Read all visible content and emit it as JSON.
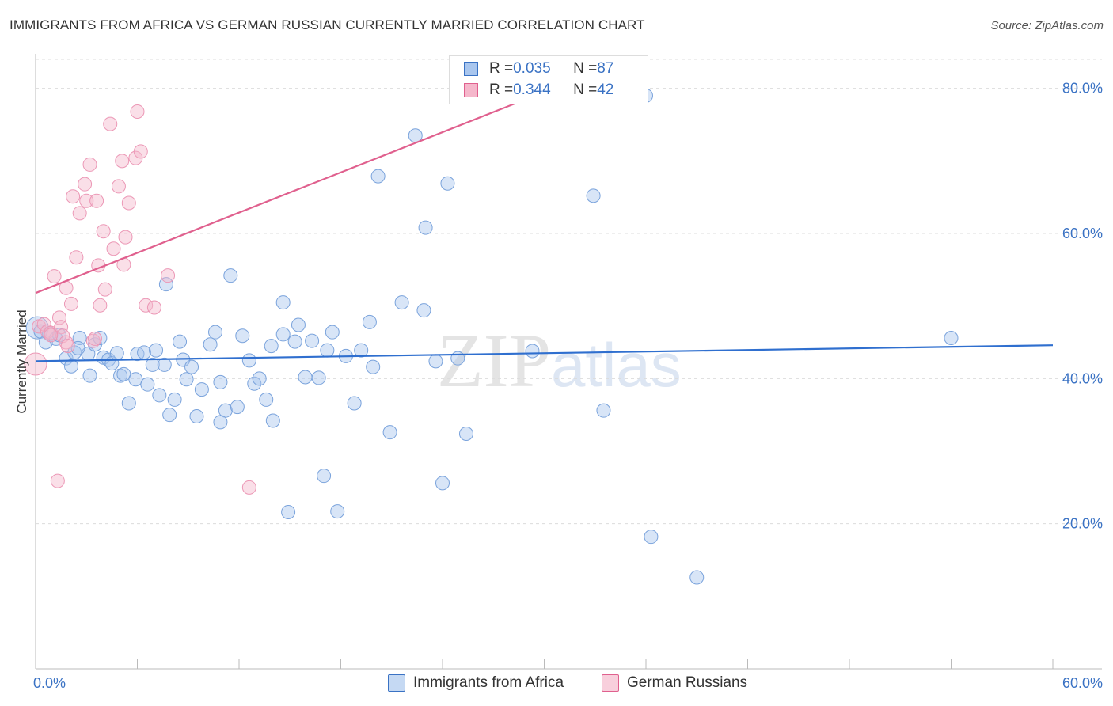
{
  "title": "IMMIGRANTS FROM AFRICA VS GERMAN RUSSIAN CURRENTLY MARRIED CORRELATION CHART",
  "source": "Source: ZipAtlas.com",
  "watermark": {
    "zip": "ZIP",
    "atlas": "atlas"
  },
  "colors": {
    "blue": "#3a72c4",
    "blue_fill": "#a9c6ee",
    "pink": "#e0608e",
    "pink_fill": "#f5b7cb"
  },
  "legend": {
    "rows": [
      {
        "r_label": "R = ",
        "r_value": "0.035",
        "n_label": "N = ",
        "n_value": "87"
      },
      {
        "r_label": "R = ",
        "r_value": "0.344",
        "n_label": "N = ",
        "n_value": "42"
      }
    ]
  },
  "bottom_legend": {
    "series1": "Immigrants from Africa",
    "series2": "German Russians"
  },
  "chart_data": {
    "type": "scatter",
    "title": "IMMIGRANTS FROM AFRICA VS GERMAN RUSSIAN CURRENTLY MARRIED CORRELATION CHART",
    "xlabel": "",
    "ylabel": "Currently Married",
    "xlim": [
      0,
      60
    ],
    "ylim": [
      0,
      84
    ],
    "x_tick_labels": [
      "0.0%",
      "60.0%"
    ],
    "y_ticks": [
      20,
      40,
      60,
      80
    ],
    "y_tick_labels": [
      "20.0%",
      "40.0%",
      "60.0%",
      "80.0%"
    ],
    "series": [
      {
        "name": "Immigrants from Africa",
        "r": 0.035,
        "n": 87,
        "trend": [
          [
            0,
            42.4
          ],
          [
            60,
            44.6
          ]
        ],
        "points": [
          [
            0.1,
            47.0
          ],
          [
            0.3,
            46.5
          ],
          [
            0.6,
            45.0
          ],
          [
            0.8,
            46.2
          ],
          [
            1.2,
            45.5
          ],
          [
            1.8,
            42.8
          ],
          [
            2.1,
            41.7
          ],
          [
            2.3,
            43.6
          ],
          [
            2.6,
            45.6
          ],
          [
            3.1,
            43.4
          ],
          [
            3.2,
            40.4
          ],
          [
            3.5,
            44.7
          ],
          [
            3.8,
            45.6
          ],
          [
            4.0,
            42.9
          ],
          [
            4.3,
            42.6
          ],
          [
            4.5,
            42.1
          ],
          [
            4.8,
            43.5
          ],
          [
            5.0,
            40.4
          ],
          [
            5.2,
            40.6
          ],
          [
            5.5,
            36.6
          ],
          [
            5.9,
            39.9
          ],
          [
            6.0,
            43.4
          ],
          [
            6.4,
            43.6
          ],
          [
            6.6,
            39.2
          ],
          [
            6.9,
            41.9
          ],
          [
            7.1,
            43.9
          ],
          [
            7.3,
            37.7
          ],
          [
            7.6,
            41.9
          ],
          [
            7.9,
            35.0
          ],
          [
            8.2,
            37.1
          ],
          [
            8.5,
            45.1
          ],
          [
            8.7,
            42.6
          ],
          [
            8.9,
            39.9
          ],
          [
            9.2,
            41.6
          ],
          [
            9.5,
            34.8
          ],
          [
            9.8,
            38.5
          ],
          [
            10.3,
            44.7
          ],
          [
            10.6,
            46.4
          ],
          [
            10.9,
            39.5
          ],
          [
            11.2,
            35.6
          ],
          [
            11.5,
            54.2
          ],
          [
            11.9,
            36.1
          ],
          [
            12.2,
            45.9
          ],
          [
            12.6,
            42.5
          ],
          [
            12.9,
            39.3
          ],
          [
            13.2,
            40.0
          ],
          [
            13.6,
            37.1
          ],
          [
            13.9,
            44.5
          ],
          [
            14.0,
            34.2
          ],
          [
            14.6,
            46.1
          ],
          [
            14.6,
            50.5
          ],
          [
            15.3,
            45.1
          ],
          [
            15.5,
            47.4
          ],
          [
            15.9,
            40.2
          ],
          [
            16.3,
            45.2
          ],
          [
            16.7,
            40.1
          ],
          [
            17.0,
            26.6
          ],
          [
            17.2,
            43.9
          ],
          [
            17.5,
            46.4
          ],
          [
            17.8,
            21.7
          ],
          [
            18.3,
            43.1
          ],
          [
            18.8,
            36.6
          ],
          [
            19.2,
            43.9
          ],
          [
            19.7,
            47.8
          ],
          [
            19.9,
            41.6
          ],
          [
            20.2,
            67.9
          ],
          [
            20.9,
            32.6
          ],
          [
            21.6,
            50.5
          ],
          [
            22.4,
            73.5
          ],
          [
            22.9,
            49.4
          ],
          [
            23.0,
            60.8
          ],
          [
            23.6,
            42.4
          ],
          [
            24.0,
            25.6
          ],
          [
            24.3,
            66.9
          ],
          [
            24.9,
            42.8
          ],
          [
            25.4,
            32.4
          ],
          [
            29.3,
            43.8
          ],
          [
            32.9,
            65.2
          ],
          [
            33.5,
            35.6
          ],
          [
            36.0,
            79.0
          ],
          [
            36.3,
            18.2
          ],
          [
            39.0,
            12.6
          ],
          [
            54.0,
            45.6
          ],
          [
            14.9,
            21.6
          ],
          [
            7.7,
            53.0
          ],
          [
            10.9,
            34.0
          ],
          [
            1.4,
            46.0
          ],
          [
            2.5,
            44.2
          ]
        ]
      },
      {
        "name": "German Russians",
        "r": 0.344,
        "n": 42,
        "trend": [
          [
            0,
            51.8
          ],
          [
            30,
            79.5
          ]
        ],
        "points": [
          [
            0.0,
            42.0
          ],
          [
            0.2,
            47.2
          ],
          [
            0.5,
            47.5
          ],
          [
            0.7,
            46.5
          ],
          [
            0.9,
            46.3
          ],
          [
            1.1,
            54.1
          ],
          [
            1.3,
            25.9
          ],
          [
            1.4,
            48.4
          ],
          [
            1.5,
            47.1
          ],
          [
            1.6,
            45.9
          ],
          [
            1.8,
            45.0
          ],
          [
            1.8,
            52.5
          ],
          [
            2.1,
            50.3
          ],
          [
            2.2,
            65.1
          ],
          [
            2.4,
            56.7
          ],
          [
            2.6,
            62.8
          ],
          [
            2.9,
            66.8
          ],
          [
            3.0,
            64.5
          ],
          [
            3.2,
            69.5
          ],
          [
            3.4,
            45.2
          ],
          [
            3.6,
            64.5
          ],
          [
            3.7,
            55.6
          ],
          [
            3.8,
            50.1
          ],
          [
            4.0,
            60.3
          ],
          [
            4.1,
            52.3
          ],
          [
            4.4,
            75.1
          ],
          [
            4.6,
            57.9
          ],
          [
            4.9,
            66.5
          ],
          [
            5.1,
            70.0
          ],
          [
            5.2,
            55.7
          ],
          [
            5.3,
            59.5
          ],
          [
            5.5,
            64.2
          ],
          [
            5.9,
            70.4
          ],
          [
            6.0,
            76.8
          ],
          [
            6.2,
            71.3
          ],
          [
            6.5,
            50.1
          ],
          [
            7.0,
            49.8
          ],
          [
            7.8,
            54.2
          ],
          [
            12.6,
            25.0
          ],
          [
            0.9,
            46.0
          ],
          [
            1.9,
            44.5
          ],
          [
            3.5,
            45.5
          ]
        ]
      }
    ]
  }
}
